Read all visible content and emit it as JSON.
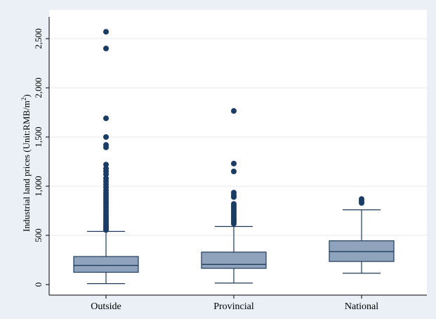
{
  "chart_data": {
    "type": "box",
    "ylabel_main": "Industrial land prices (Unit:RMB/m",
    "ylabel_sup": "2",
    "ylabel_end": ")",
    "xlabel": "",
    "ylim": [
      -100,
      2680
    ],
    "yticks": [
      0,
      500,
      1000,
      1500,
      2000,
      2500
    ],
    "ytick_labels": [
      "0",
      "500",
      "1,000",
      "1,500",
      "2,000",
      "2,500"
    ],
    "grid": true,
    "categories": [
      "Outside",
      "Provincial",
      "National"
    ],
    "boxes": [
      {
        "category": "Outside",
        "whisker_low": 10,
        "q1": 125,
        "median": 195,
        "q3": 285,
        "whisker_high": 540,
        "outliers": [
          2570,
          2400,
          1690,
          1500,
          1420,
          1395,
          1220,
          1180,
          1150,
          1120,
          1080,
          1050,
          1020,
          990,
          960,
          935,
          910,
          885,
          860,
          835,
          810,
          785,
          760,
          735,
          710,
          690,
          670,
          650,
          630,
          610,
          595,
          580,
          565,
          555
        ]
      },
      {
        "category": "Provincial",
        "whisker_low": 15,
        "q1": 165,
        "median": 205,
        "q3": 330,
        "whisker_high": 590,
        "outliers": [
          1765,
          1230,
          1150,
          935,
          910,
          890,
          820,
          800,
          780,
          760,
          740,
          720,
          700,
          680,
          660,
          640,
          620
        ]
      },
      {
        "category": "National",
        "whisker_low": 115,
        "q1": 235,
        "median": 335,
        "q3": 445,
        "whisker_high": 760,
        "outliers": [
          870,
          850,
          830
        ]
      }
    ],
    "colors": {
      "box_fill": "#8fa3bd",
      "box_stroke": "#1f3a5a",
      "outlier": "#1a3c65",
      "outer_bg": "#eaf0f5",
      "plot_bg": "#ffffff",
      "grid": "#e6eaee"
    }
  }
}
